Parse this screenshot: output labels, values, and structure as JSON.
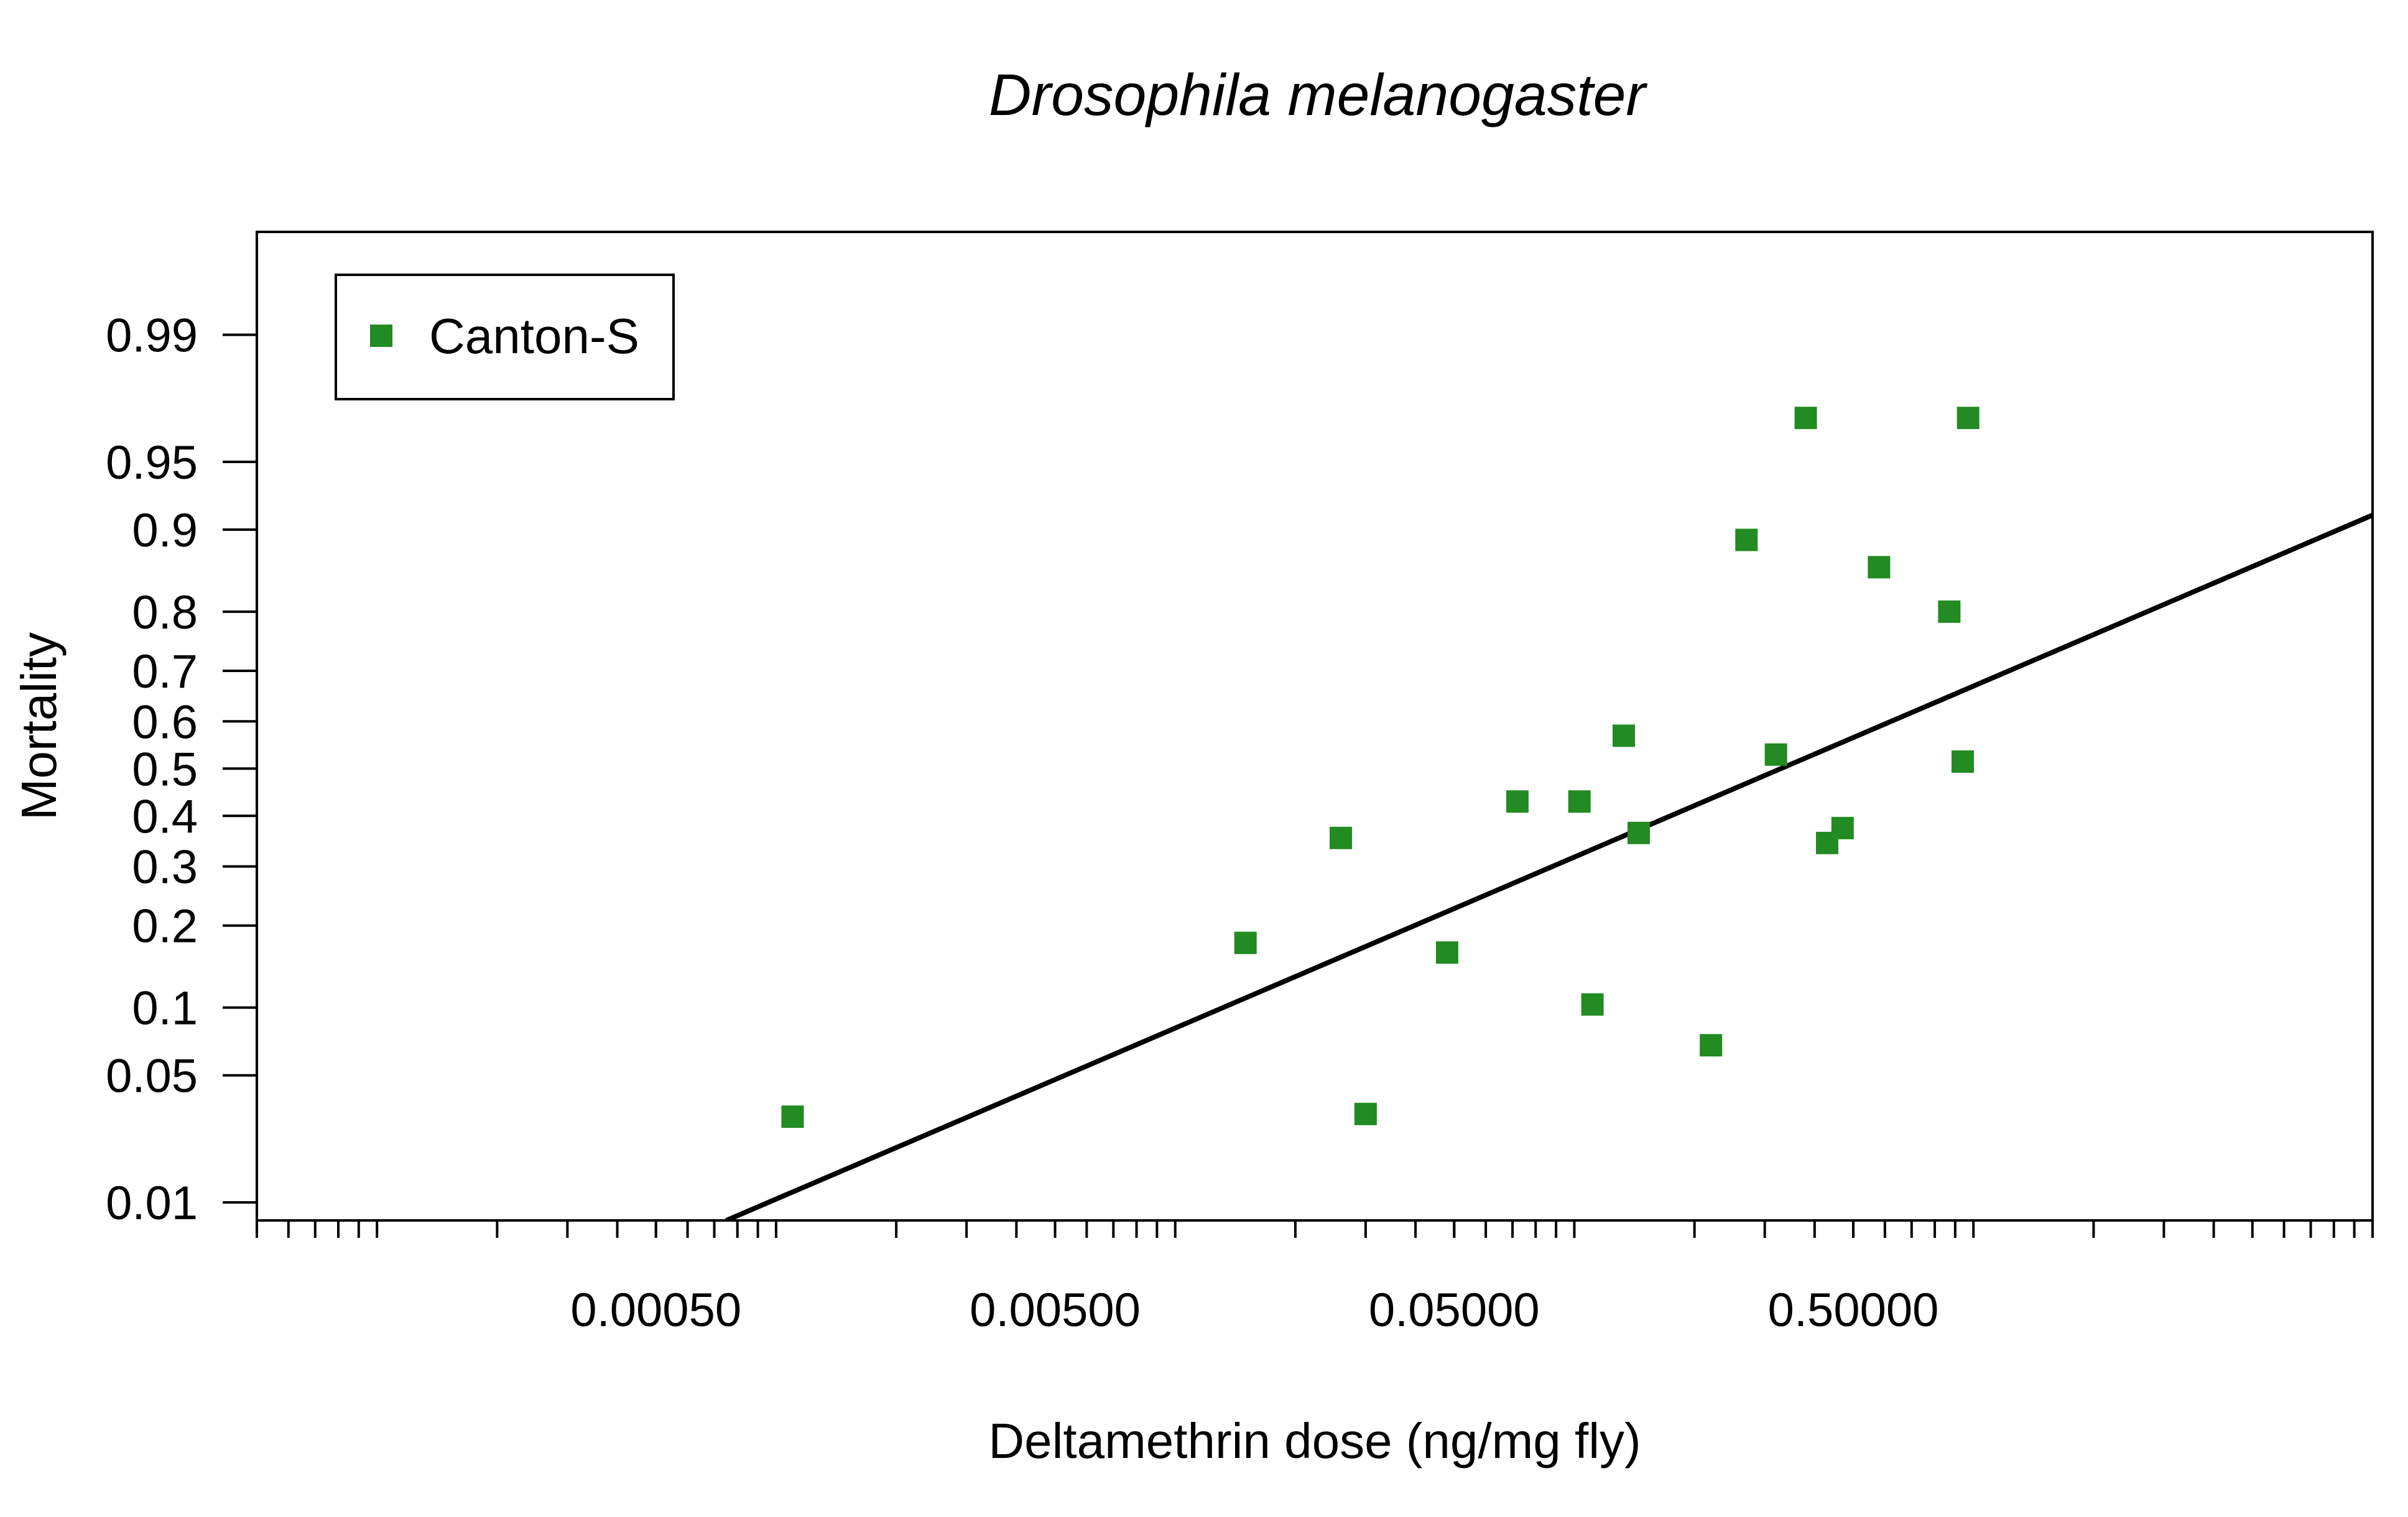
{
  "chart_data": {
    "type": "scatter",
    "title": "Drosophila melanogaster",
    "xlabel": "Deltamethrin dose (ng/mg fly)",
    "ylabel": "Mortality",
    "x_scale": "log10",
    "y_scale": "probit",
    "xlim": [
      5e-05,
      10
    ],
    "ylim": [
      0.0077,
      0.998
    ],
    "x_ticks": [
      {
        "value": 0.0005,
        "label": "0.00050"
      },
      {
        "value": 0.005,
        "label": "0.00500"
      },
      {
        "value": 0.05,
        "label": "0.05000"
      },
      {
        "value": 0.5,
        "label": "0.50000"
      }
    ],
    "y_ticks": [
      {
        "value": 0.01,
        "label": "0.01"
      },
      {
        "value": 0.05,
        "label": "0.05"
      },
      {
        "value": 0.1,
        "label": "0.1"
      },
      {
        "value": 0.2,
        "label": "0.2"
      },
      {
        "value": 0.3,
        "label": "0.3"
      },
      {
        "value": 0.4,
        "label": "0.4"
      },
      {
        "value": 0.5,
        "label": "0.5"
      },
      {
        "value": 0.6,
        "label": "0.6"
      },
      {
        "value": 0.7,
        "label": "0.7"
      },
      {
        "value": 0.8,
        "label": "0.8"
      },
      {
        "value": 0.9,
        "label": "0.9"
      },
      {
        "value": 0.95,
        "label": "0.95"
      },
      {
        "value": 0.99,
        "label": "0.99"
      }
    ],
    "legend": {
      "position": "top-left"
    },
    "series": [
      {
        "name": "Canton-S",
        "color": "#228B22",
        "marker": "square",
        "points": [
          {
            "x": 0.0011,
            "y": 0.031
          },
          {
            "x": 0.015,
            "y": 0.175
          },
          {
            "x": 0.026,
            "y": 0.355
          },
          {
            "x": 0.03,
            "y": 0.032
          },
          {
            "x": 0.048,
            "y": 0.162
          },
          {
            "x": 0.072,
            "y": 0.43
          },
          {
            "x": 0.103,
            "y": 0.43
          },
          {
            "x": 0.111,
            "y": 0.103
          },
          {
            "x": 0.133,
            "y": 0.57
          },
          {
            "x": 0.145,
            "y": 0.365
          },
          {
            "x": 0.22,
            "y": 0.069
          },
          {
            "x": 0.27,
            "y": 0.89
          },
          {
            "x": 0.32,
            "y": 0.53
          },
          {
            "x": 0.38,
            "y": 0.97
          },
          {
            "x": 0.43,
            "y": 0.345
          },
          {
            "x": 0.47,
            "y": 0.375
          },
          {
            "x": 0.58,
            "y": 0.86
          },
          {
            "x": 0.87,
            "y": 0.8
          },
          {
            "x": 0.94,
            "y": 0.515
          },
          {
            "x": 0.97,
            "y": 0.97
          }
        ]
      }
    ],
    "fit_line": {
      "name": "probit fit",
      "color": "#000000",
      "points": [
        {
          "x": 0.00075,
          "y": 0.0077
        },
        {
          "x": 10,
          "y": 0.913
        }
      ]
    }
  }
}
